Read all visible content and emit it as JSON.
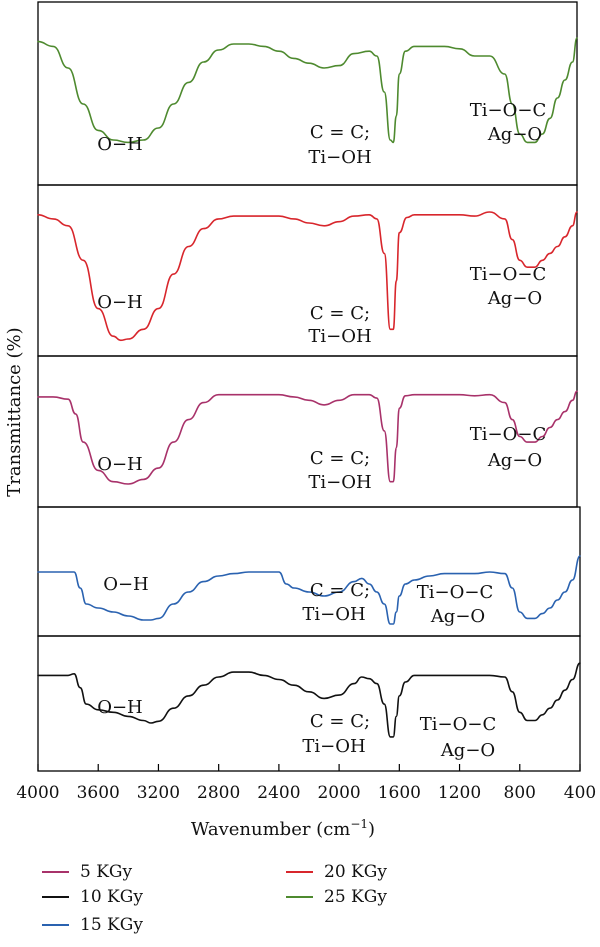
{
  "chart_data": {
    "type": "line",
    "title": "",
    "xlabel": "Wavenumber (cm",
    "xlabel_sup": "−1",
    "xlabel_close": ")",
    "ylabel": "Transmittance (%)",
    "xlim": [
      4000,
      400
    ],
    "x_ticks": [
      "4000",
      "3600",
      "3200",
      "2800",
      "2400",
      "2000",
      "1600",
      "1200",
      "800",
      "400"
    ],
    "x_tick_values": [
      4000,
      3600,
      3200,
      2800,
      2400,
      2000,
      1600,
      1200,
      800,
      400
    ],
    "panel_order": [
      "25 KGy",
      "20 KGy",
      "5 KGy",
      "15 KGy",
      "10 KGy"
    ],
    "series": [
      {
        "name": "25 KGy",
        "color": "#4e8a2f",
        "points": [
          [
            4000,
            0.08
          ],
          [
            3900,
            0.12
          ],
          [
            3800,
            0.3
          ],
          [
            3700,
            0.6
          ],
          [
            3600,
            0.82
          ],
          [
            3500,
            0.9
          ],
          [
            3400,
            0.92
          ],
          [
            3300,
            0.9
          ],
          [
            3200,
            0.8
          ],
          [
            3100,
            0.6
          ],
          [
            3000,
            0.42
          ],
          [
            2900,
            0.25
          ],
          [
            2800,
            0.15
          ],
          [
            2700,
            0.1
          ],
          [
            2600,
            0.1
          ],
          [
            2500,
            0.12
          ],
          [
            2400,
            0.16
          ],
          [
            2300,
            0.22
          ],
          [
            2200,
            0.26
          ],
          [
            2100,
            0.3
          ],
          [
            2000,
            0.28
          ],
          [
            1900,
            0.18
          ],
          [
            1800,
            0.16
          ],
          [
            1750,
            0.2
          ],
          [
            1700,
            0.5
          ],
          [
            1660,
            0.9
          ],
          [
            1640,
            0.92
          ],
          [
            1620,
            0.7
          ],
          [
            1600,
            0.35
          ],
          [
            1560,
            0.16
          ],
          [
            1500,
            0.12
          ],
          [
            1400,
            0.12
          ],
          [
            1300,
            0.12
          ],
          [
            1200,
            0.14
          ],
          [
            1100,
            0.2
          ],
          [
            1000,
            0.2
          ],
          [
            900,
            0.35
          ],
          [
            850,
            0.6
          ],
          [
            800,
            0.85
          ],
          [
            750,
            0.92
          ],
          [
            700,
            0.92
          ],
          [
            650,
            0.85
          ],
          [
            600,
            0.72
          ],
          [
            550,
            0.55
          ],
          [
            500,
            0.4
          ],
          [
            450,
            0.25
          ],
          [
            400,
            0.05
          ]
        ],
        "annotations": [
          "O−H",
          "C = C;",
          "Ti−OH",
          "Ti−O−C",
          "Ag−O"
        ]
      },
      {
        "name": "20 KGy",
        "color": "#d8262c",
        "points": [
          [
            4000,
            0.02
          ],
          [
            3900,
            0.05
          ],
          [
            3800,
            0.1
          ],
          [
            3700,
            0.35
          ],
          [
            3600,
            0.7
          ],
          [
            3500,
            0.9
          ],
          [
            3450,
            0.93
          ],
          [
            3400,
            0.92
          ],
          [
            3300,
            0.85
          ],
          [
            3200,
            0.7
          ],
          [
            3100,
            0.45
          ],
          [
            3000,
            0.25
          ],
          [
            2900,
            0.12
          ],
          [
            2800,
            0.05
          ],
          [
            2700,
            0.03
          ],
          [
            2600,
            0.03
          ],
          [
            2500,
            0.03
          ],
          [
            2400,
            0.03
          ],
          [
            2300,
            0.05
          ],
          [
            2200,
            0.08
          ],
          [
            2100,
            0.1
          ],
          [
            2000,
            0.07
          ],
          [
            1900,
            0.03
          ],
          [
            1800,
            0.02
          ],
          [
            1750,
            0.05
          ],
          [
            1700,
            0.3
          ],
          [
            1660,
            0.85
          ],
          [
            1640,
            0.85
          ],
          [
            1620,
            0.5
          ],
          [
            1600,
            0.15
          ],
          [
            1550,
            0.04
          ],
          [
            1500,
            0.02
          ],
          [
            1400,
            0.02
          ],
          [
            1300,
            0.02
          ],
          [
            1200,
            0.02
          ],
          [
            1100,
            0.03
          ],
          [
            1000,
            0.0
          ],
          [
            900,
            0.05
          ],
          [
            850,
            0.2
          ],
          [
            800,
            0.35
          ],
          [
            750,
            0.4
          ],
          [
            700,
            0.4
          ],
          [
            650,
            0.35
          ],
          [
            600,
            0.3
          ],
          [
            550,
            0.25
          ],
          [
            500,
            0.18
          ],
          [
            450,
            0.1
          ],
          [
            400,
            0.0
          ]
        ],
        "annotations": [
          "O−H",
          "C = C;",
          "Ti−OH",
          "Ti−O−C",
          "Ag−O"
        ]
      },
      {
        "name": "5 KGy",
        "color": "#a8326a",
        "points": [
          [
            4000,
            0.15
          ],
          [
            3900,
            0.15
          ],
          [
            3800,
            0.17
          ],
          [
            3750,
            0.3
          ],
          [
            3700,
            0.55
          ],
          [
            3600,
            0.8
          ],
          [
            3500,
            0.9
          ],
          [
            3400,
            0.92
          ],
          [
            3300,
            0.88
          ],
          [
            3200,
            0.78
          ],
          [
            3100,
            0.55
          ],
          [
            3000,
            0.35
          ],
          [
            2900,
            0.2
          ],
          [
            2800,
            0.13
          ],
          [
            2700,
            0.13
          ],
          [
            2600,
            0.13
          ],
          [
            2500,
            0.13
          ],
          [
            2400,
            0.13
          ],
          [
            2300,
            0.15
          ],
          [
            2200,
            0.18
          ],
          [
            2100,
            0.22
          ],
          [
            2000,
            0.18
          ],
          [
            1900,
            0.13
          ],
          [
            1800,
            0.13
          ],
          [
            1750,
            0.16
          ],
          [
            1700,
            0.45
          ],
          [
            1660,
            0.9
          ],
          [
            1640,
            0.9
          ],
          [
            1620,
            0.6
          ],
          [
            1600,
            0.25
          ],
          [
            1560,
            0.14
          ],
          [
            1500,
            0.13
          ],
          [
            1400,
            0.13
          ],
          [
            1300,
            0.13
          ],
          [
            1200,
            0.13
          ],
          [
            1100,
            0.14
          ],
          [
            1000,
            0.13
          ],
          [
            900,
            0.2
          ],
          [
            850,
            0.35
          ],
          [
            800,
            0.5
          ],
          [
            750,
            0.55
          ],
          [
            700,
            0.55
          ],
          [
            650,
            0.5
          ],
          [
            600,
            0.42
          ],
          [
            550,
            0.35
          ],
          [
            500,
            0.28
          ],
          [
            450,
            0.18
          ],
          [
            400,
            0.1
          ]
        ],
        "annotations": [
          "O−H",
          "C = C;",
          "Ti−OH",
          "Ti−O−C",
          "Ag−O"
        ]
      },
      {
        "name": "15 KGy",
        "color": "#2a62b0",
        "points": [
          [
            4000,
            0.3
          ],
          [
            3900,
            0.3
          ],
          [
            3800,
            0.3
          ],
          [
            3760,
            0.3
          ],
          [
            3720,
            0.5
          ],
          [
            3680,
            0.7
          ],
          [
            3600,
            0.75
          ],
          [
            3500,
            0.8
          ],
          [
            3400,
            0.85
          ],
          [
            3300,
            0.9
          ],
          [
            3250,
            0.9
          ],
          [
            3200,
            0.88
          ],
          [
            3100,
            0.7
          ],
          [
            3000,
            0.55
          ],
          [
            2900,
            0.42
          ],
          [
            2800,
            0.35
          ],
          [
            2700,
            0.32
          ],
          [
            2600,
            0.3
          ],
          [
            2500,
            0.3
          ],
          [
            2400,
            0.3
          ],
          [
            2350,
            0.45
          ],
          [
            2300,
            0.5
          ],
          [
            2200,
            0.55
          ],
          [
            2100,
            0.6
          ],
          [
            2000,
            0.55
          ],
          [
            1900,
            0.42
          ],
          [
            1850,
            0.38
          ],
          [
            1800,
            0.45
          ],
          [
            1750,
            0.55
          ],
          [
            1700,
            0.7
          ],
          [
            1660,
            0.95
          ],
          [
            1640,
            0.95
          ],
          [
            1620,
            0.8
          ],
          [
            1600,
            0.6
          ],
          [
            1560,
            0.45
          ],
          [
            1500,
            0.4
          ],
          [
            1400,
            0.35
          ],
          [
            1300,
            0.32
          ],
          [
            1200,
            0.32
          ],
          [
            1100,
            0.32
          ],
          [
            1000,
            0.3
          ],
          [
            900,
            0.32
          ],
          [
            850,
            0.5
          ],
          [
            800,
            0.8
          ],
          [
            750,
            0.88
          ],
          [
            700,
            0.88
          ],
          [
            650,
            0.82
          ],
          [
            600,
            0.75
          ],
          [
            550,
            0.65
          ],
          [
            500,
            0.55
          ],
          [
            450,
            0.4
          ],
          [
            400,
            0.1
          ]
        ],
        "annotations": [
          "O−H",
          "C = C;",
          "Ti−OH",
          "Ti−O−C",
          "Ag−O"
        ]
      },
      {
        "name": "10 KGy",
        "color": "#111111",
        "points": [
          [
            4000,
            0.2
          ],
          [
            3900,
            0.2
          ],
          [
            3800,
            0.2
          ],
          [
            3760,
            0.18
          ],
          [
            3720,
            0.35
          ],
          [
            3680,
            0.55
          ],
          [
            3600,
            0.62
          ],
          [
            3500,
            0.65
          ],
          [
            3400,
            0.7
          ],
          [
            3300,
            0.75
          ],
          [
            3250,
            0.78
          ],
          [
            3200,
            0.76
          ],
          [
            3100,
            0.6
          ],
          [
            3000,
            0.45
          ],
          [
            2900,
            0.32
          ],
          [
            2800,
            0.22
          ],
          [
            2700,
            0.16
          ],
          [
            2600,
            0.16
          ],
          [
            2500,
            0.2
          ],
          [
            2400,
            0.25
          ],
          [
            2300,
            0.32
          ],
          [
            2200,
            0.4
          ],
          [
            2100,
            0.48
          ],
          [
            2000,
            0.44
          ],
          [
            1900,
            0.3
          ],
          [
            1850,
            0.22
          ],
          [
            1800,
            0.24
          ],
          [
            1750,
            0.3
          ],
          [
            1700,
            0.55
          ],
          [
            1660,
            0.95
          ],
          [
            1640,
            0.95
          ],
          [
            1620,
            0.7
          ],
          [
            1600,
            0.45
          ],
          [
            1560,
            0.28
          ],
          [
            1500,
            0.2
          ],
          [
            1400,
            0.2
          ],
          [
            1300,
            0.2
          ],
          [
            1200,
            0.2
          ],
          [
            1100,
            0.2
          ],
          [
            1000,
            0.2
          ],
          [
            900,
            0.22
          ],
          [
            850,
            0.4
          ],
          [
            800,
            0.65
          ],
          [
            750,
            0.75
          ],
          [
            700,
            0.75
          ],
          [
            650,
            0.68
          ],
          [
            600,
            0.6
          ],
          [
            550,
            0.5
          ],
          [
            500,
            0.38
          ],
          [
            450,
            0.25
          ],
          [
            400,
            0.05
          ]
        ],
        "annotations": [
          "O−H",
          "C = C;",
          "Ti−OH",
          "Ti−O−C",
          "Ag−O"
        ]
      }
    ],
    "legend": [
      {
        "label": "5 KGy",
        "color": "#a8326a"
      },
      {
        "label": "20 KGy",
        "color": "#d8262c"
      },
      {
        "label": "10 KGy",
        "color": "#111111"
      },
      {
        "label": "25 KGy",
        "color": "#4e8a2f"
      },
      {
        "label": "15 KGy",
        "color": "#2a62b0"
      }
    ],
    "legend_placement": "bottom",
    "grid": false
  }
}
